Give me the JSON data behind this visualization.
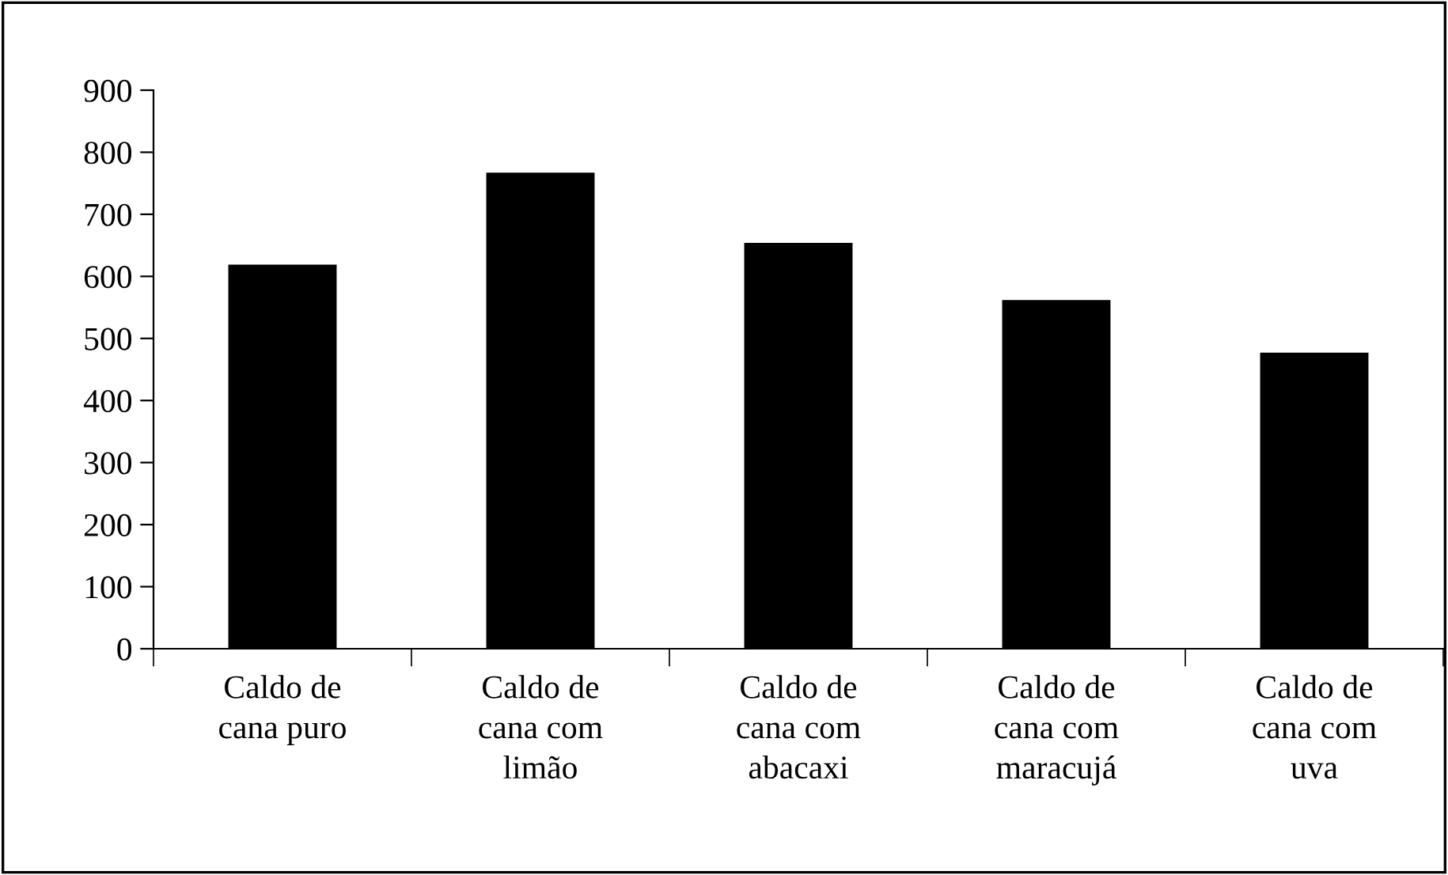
{
  "chart_data": {
    "type": "bar",
    "categories": [
      "Caldo de\ncana puro",
      "Caldo de\ncana com\nlimão",
      "Caldo de\ncana com\nabacaxi",
      "Caldo de\ncana com\nmaracujá",
      "Caldo de\ncana com\nuva"
    ],
    "values": [
      619,
      767,
      654,
      562,
      477
    ],
    "color": "#000000",
    "ylim": [
      0,
      900
    ],
    "yticks": [
      0,
      100,
      200,
      300,
      400,
      500,
      600,
      700,
      800,
      900
    ],
    "grid": false,
    "legend": false
  }
}
